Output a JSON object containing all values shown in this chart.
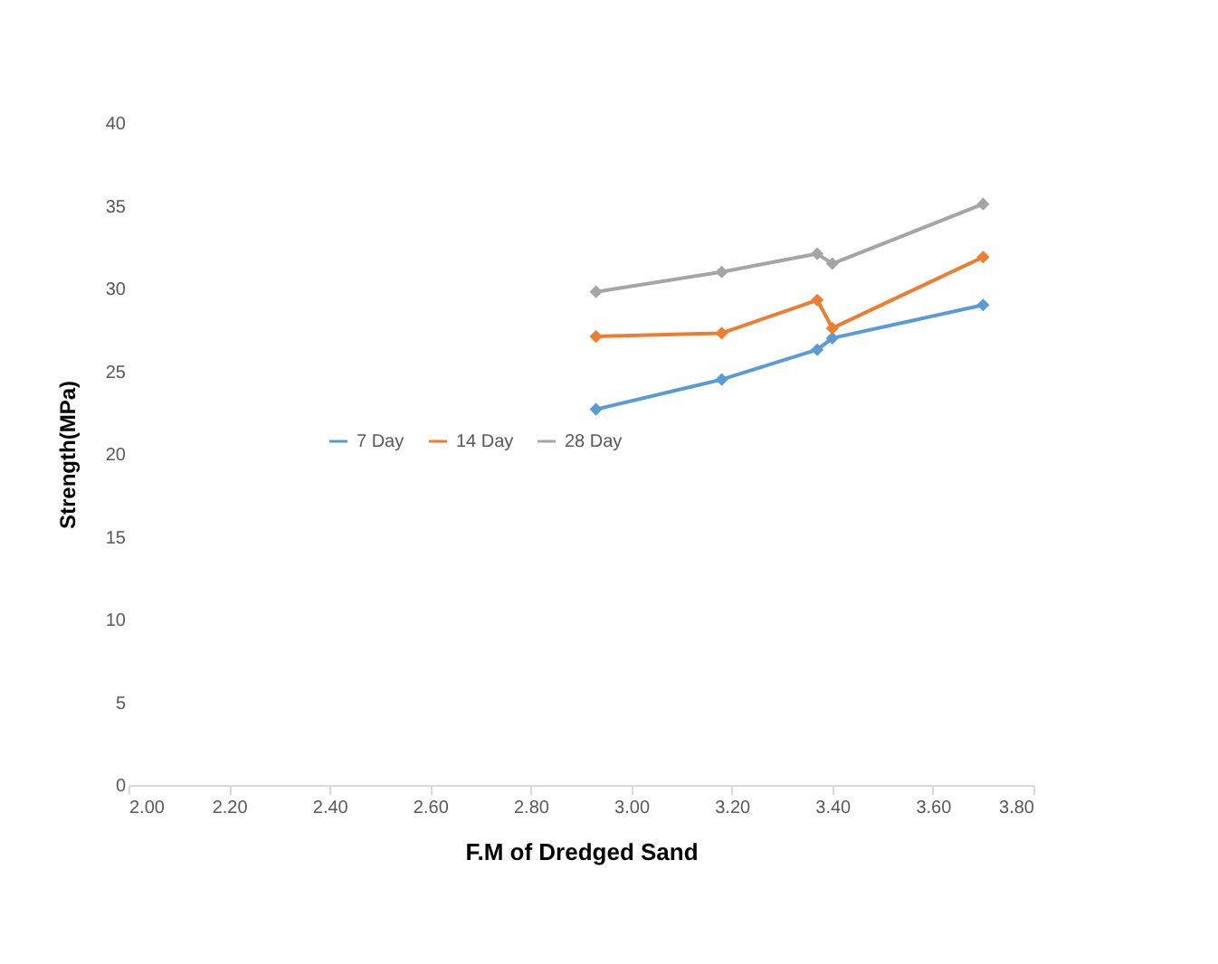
{
  "chart_data": {
    "type": "line",
    "xlabel": "F.M of Dredged Sand",
    "ylabel": "Strength(MPa)",
    "x": [
      2.93,
      3.18,
      3.37,
      3.4,
      3.7
    ],
    "series": [
      {
        "name": "7 Day",
        "color": "#5b9bd5",
        "values": [
          22.7,
          24.5,
          26.3,
          27.0,
          29.0
        ]
      },
      {
        "name": "14 Day",
        "color": "#ed7d31",
        "values": [
          27.1,
          27.3,
          29.3,
          27.6,
          31.9
        ]
      },
      {
        "name": "28 Day",
        "color": "#a5a5a5",
        "values": [
          29.8,
          31.0,
          32.1,
          31.5,
          35.1
        ]
      }
    ],
    "xlim": [
      2.0,
      3.8
    ],
    "xticks": [
      {
        "value": 2.0,
        "label": "2.00"
      },
      {
        "value": 2.2,
        "label": "2.20"
      },
      {
        "value": 2.4,
        "label": "2.40"
      },
      {
        "value": 2.6,
        "label": "2.60"
      },
      {
        "value": 2.8,
        "label": "2.80"
      },
      {
        "value": 3.0,
        "label": "3.00"
      },
      {
        "value": 3.2,
        "label": "3.20"
      },
      {
        "value": 3.4,
        "label": "3.40"
      },
      {
        "value": 3.6,
        "label": "3.60"
      },
      {
        "value": 3.8,
        "label": "3.80"
      }
    ],
    "ylim": [
      0,
      40
    ],
    "yticks": [
      0,
      5,
      10,
      15,
      20,
      25,
      30,
      35,
      40
    ],
    "grid": false,
    "legend": "center",
    "marker": "diamond",
    "line_style": "solid"
  }
}
